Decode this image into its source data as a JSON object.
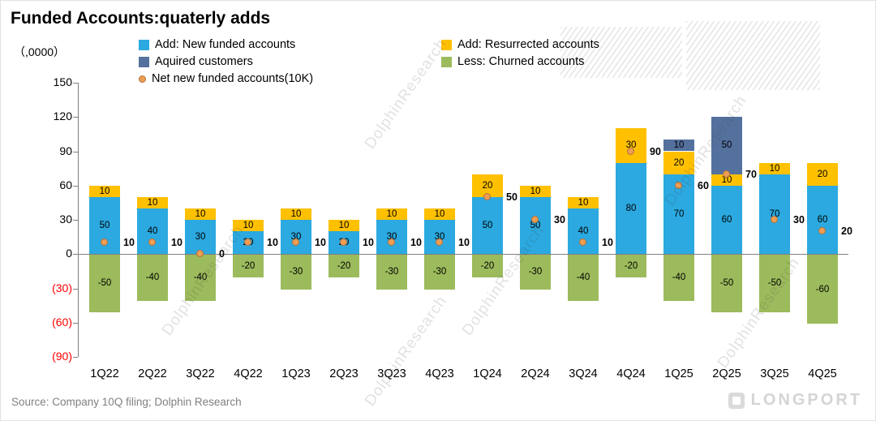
{
  "title": "Funded Accounts:quaterly adds",
  "unit_label": "（,0000）",
  "source": "Source: Company 10Q filing; Dolphin Research",
  "watermark": "DolphinResearch",
  "brand": "LONGPORT",
  "axis": {
    "negative_color": "#FF0000",
    "axis_color": "#808080"
  },
  "legend": [
    {
      "label": "Add: New funded accounts",
      "color": "#2BA9E0",
      "shape": "square"
    },
    {
      "label": "Add: Resurrected accounts",
      "color": "#FFC000",
      "shape": "square"
    },
    {
      "label": "Aquired customers",
      "color": "#54719E",
      "shape": "square"
    },
    {
      "label": "Less: Churned accounts",
      "color": "#9CBB5C",
      "shape": "square"
    },
    {
      "label": "Net new funded accounts(10K)",
      "color": "#ED9E54",
      "shape": "dot"
    }
  ],
  "chart_data": {
    "type": "bar",
    "stacked": true,
    "title": "Funded Accounts:quaterly adds",
    "ylabel": "（,0000）",
    "ylim": [
      -90,
      150
    ],
    "ytick_step": 30,
    "yticks_labels": [
      "150",
      "120",
      "90",
      "60",
      "30",
      "0",
      "(30)",
      "(60)",
      "(90)"
    ],
    "categories": [
      "1Q22",
      "2Q22",
      "3Q22",
      "4Q22",
      "1Q23",
      "2Q23",
      "3Q23",
      "4Q23",
      "1Q24",
      "2Q24",
      "3Q24",
      "4Q24",
      "1Q25",
      "2Q25",
      "3Q25",
      "4Q25"
    ],
    "series": [
      {
        "name": "Add: New funded accounts",
        "color": "#2BA9E0",
        "values": [
          50,
          40,
          30,
          20,
          30,
          20,
          30,
          30,
          50,
          50,
          40,
          80,
          70,
          60,
          70,
          60
        ]
      },
      {
        "name": "Add: Resurrected accounts",
        "color": "#FFC000",
        "values": [
          10,
          10,
          10,
          10,
          10,
          10,
          10,
          10,
          20,
          10,
          10,
          30,
          20,
          10,
          10,
          20
        ]
      },
      {
        "name": "Aquired customers",
        "color": "#54719E",
        "values": [
          0,
          0,
          0,
          0,
          0,
          0,
          0,
          0,
          0,
          0,
          0,
          0,
          10,
          50,
          0,
          0
        ]
      },
      {
        "name": "Less: Churned accounts",
        "color": "#9CBB5C",
        "values": [
          -50,
          -40,
          -40,
          -20,
          -30,
          -20,
          -30,
          -30,
          -20,
          -30,
          -40,
          -20,
          -40,
          -50,
          -50,
          -60
        ]
      }
    ],
    "net_series": {
      "name": "Net new funded accounts(10K)",
      "color": "#ED9E54",
      "values": [
        10,
        10,
        0,
        10,
        10,
        10,
        10,
        10,
        50,
        30,
        10,
        90,
        60,
        70,
        30,
        20
      ]
    },
    "legend_position": "top",
    "grid": false
  }
}
